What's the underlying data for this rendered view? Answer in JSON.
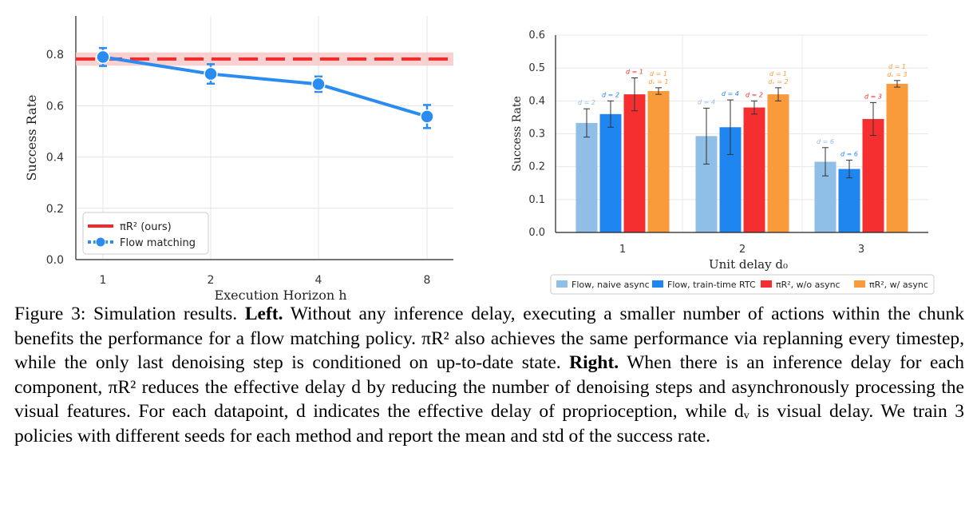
{
  "chart_data": [
    {
      "type": "line",
      "x": [
        "1",
        "2",
        "4",
        "8"
      ],
      "xlabel": "Execution Horizon h",
      "ylabel": "Success Rate",
      "ylim": [
        0.0,
        0.95
      ],
      "yticks": [
        "0.0",
        "0.2",
        "0.4",
        "0.6",
        "0.8"
      ],
      "grid": true,
      "legend_position": "bottom-left",
      "series": [
        {
          "name": "πR² (ours)",
          "style": "dashed-horizontal",
          "color": "#f02b2b",
          "value": 0.782,
          "band": [
            0.756,
            0.808
          ]
        },
        {
          "name": "Flow matching",
          "style": "line-markers",
          "color": "#2a8cf0",
          "values": [
            0.79,
            0.724,
            0.684,
            0.558
          ],
          "errors": [
            0.035,
            0.038,
            0.03,
            0.045
          ]
        }
      ]
    },
    {
      "type": "bar",
      "categories": [
        "1",
        "2",
        "3"
      ],
      "xlabel": "Unit delay d₀",
      "ylabel": "Success Rate",
      "ylim": [
        0.0,
        0.6
      ],
      "yticks": [
        "0.0",
        "0.1",
        "0.2",
        "0.3",
        "0.4",
        "0.5",
        "0.6"
      ],
      "grid": true,
      "legend_position": "bottom",
      "series": [
        {
          "name": "Flow, naive async",
          "color": "#8fbee6",
          "values": [
            0.333,
            0.293,
            0.215
          ],
          "errors": [
            0.043,
            0.085,
            0.043
          ],
          "labels": [
            [
              "d = 2"
            ],
            [
              "d = 4"
            ],
            [
              "d = 6"
            ]
          ]
        },
        {
          "name": "Flow, train-time RTC",
          "color": "#1f86f0",
          "values": [
            0.36,
            0.32,
            0.193
          ],
          "errors": [
            0.04,
            0.083,
            0.027
          ],
          "labels": [
            [
              "d = 2"
            ],
            [
              "d = 4"
            ],
            [
              "d = 6"
            ]
          ]
        },
        {
          "name": "πR², w/o async",
          "color": "#f52f2f",
          "values": [
            0.42,
            0.38,
            0.345
          ],
          "errors": [
            0.05,
            0.02,
            0.05
          ],
          "labels": [
            [
              "d = 1"
            ],
            [
              "d = 2"
            ],
            [
              "d = 3"
            ]
          ]
        },
        {
          "name": "πR², w/ async",
          "color": "#f99a3b",
          "values": [
            0.43,
            0.42,
            0.452
          ],
          "errors": [
            0.01,
            0.02,
            0.01
          ],
          "labels": [
            [
              "d = 1",
              "dᵥ = 1"
            ],
            [
              "d = 1",
              "dᵥ = 2"
            ],
            [
              "d = 1",
              "dᵥ = 3"
            ]
          ]
        }
      ],
      "label_colors": [
        "#8fbee6",
        "#1f86f0",
        "#f52f2f",
        "#f99a3b"
      ]
    }
  ],
  "caption": {
    "lead": "Figure 3: Simulation results. ",
    "left_head": "Left.",
    "left_body": " Without any inference delay, executing a smaller number of actions within the chunk benefits the performance for a flow matching policy. πR² also achieves the same performance via replanning every timestep, while the only last denoising step is conditioned on up-to-date state. ",
    "right_head": "Right.",
    "right_body": " When there is an inference delay for each component, πR² reduces the effective delay d by reducing the number of denoising steps and asynchronously processing the visual features. For each datapoint, d indicates the effective delay of proprioception, while dᵥ is visual delay. We train 3 policies with different seeds for each method and report the mean and std of the success rate."
  }
}
